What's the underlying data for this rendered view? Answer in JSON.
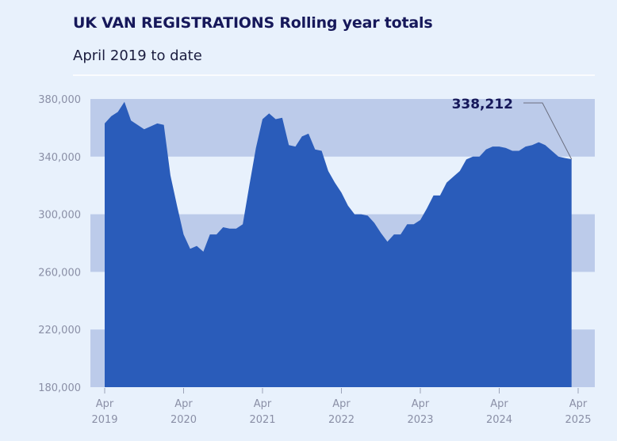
{
  "chart_data": {
    "type": "area",
    "title": "UK VAN REGISTRATIONS Rolling year totals",
    "subtitle": "April 2019 to date",
    "xlabel": "",
    "ylabel": "",
    "ylim": [
      180000,
      380000
    ],
    "y_ticks": [
      {
        "value": 380000,
        "label": "380,000"
      },
      {
        "value": 340000,
        "label": "340,000"
      },
      {
        "value": 300000,
        "label": "300,000"
      },
      {
        "value": 260000,
        "label": "260,000"
      },
      {
        "value": 220000,
        "label": "220,000"
      },
      {
        "value": 180000,
        "label": "180,000"
      }
    ],
    "x_ticks": [
      {
        "date": "2019-04",
        "line1": "Apr",
        "line2": "2019"
      },
      {
        "date": "2020-04",
        "line1": "Apr",
        "line2": "2020"
      },
      {
        "date": "2021-04",
        "line1": "Apr",
        "line2": "2021"
      },
      {
        "date": "2022-04",
        "line1": "Apr",
        "line2": "2022"
      },
      {
        "date": "2023-04",
        "line1": "Apr",
        "line2": "2023"
      },
      {
        "date": "2024-04",
        "line1": "Apr",
        "line2": "2024"
      },
      {
        "date": "2025-04",
        "line1": "Apr",
        "line2": "2025"
      }
    ],
    "grid": "alternating horizontal bands",
    "colors": {
      "area": "#2a5cba",
      "band": "#bccbea",
      "background": "#e8f1fc",
      "annotation": "#16185a"
    },
    "x": [
      "2019-04",
      "2019-05",
      "2019-06",
      "2019-07",
      "2019-08",
      "2019-09",
      "2019-10",
      "2019-11",
      "2019-12",
      "2020-01",
      "2020-02",
      "2020-03",
      "2020-04",
      "2020-05",
      "2020-06",
      "2020-07",
      "2020-08",
      "2020-09",
      "2020-10",
      "2020-11",
      "2020-12",
      "2021-01",
      "2021-02",
      "2021-03",
      "2021-04",
      "2021-05",
      "2021-06",
      "2021-07",
      "2021-08",
      "2021-09",
      "2021-10",
      "2021-11",
      "2021-12",
      "2022-01",
      "2022-02",
      "2022-03",
      "2022-04",
      "2022-05",
      "2022-06",
      "2022-07",
      "2022-08",
      "2022-09",
      "2022-10",
      "2022-11",
      "2022-12",
      "2023-01",
      "2023-02",
      "2023-03",
      "2023-04",
      "2023-05",
      "2023-06",
      "2023-07",
      "2023-08",
      "2023-09",
      "2023-10",
      "2023-11",
      "2023-12",
      "2024-01",
      "2024-02",
      "2024-03",
      "2024-04",
      "2024-05",
      "2024-06",
      "2024-07",
      "2024-08",
      "2024-09",
      "2024-10",
      "2024-11",
      "2024-12",
      "2025-01",
      "2025-02",
      "2025-03"
    ],
    "values": [
      363000,
      368000,
      371000,
      378000,
      365000,
      362000,
      359000,
      361000,
      363000,
      362000,
      327000,
      306000,
      286000,
      276000,
      278000,
      274000,
      286000,
      286000,
      291000,
      290000,
      290000,
      293000,
      320000,
      346000,
      366000,
      370000,
      366000,
      367000,
      348000,
      347000,
      354000,
      356000,
      345000,
      344000,
      330000,
      322000,
      315000,
      306000,
      300000,
      300000,
      299000,
      294000,
      287000,
      281000,
      286000,
      286000,
      293000,
      293000,
      296000,
      304000,
      313000,
      313000,
      322000,
      326000,
      330000,
      338000,
      340000,
      340000,
      345000,
      347000,
      347000,
      346000,
      344000,
      344000,
      347000,
      348000,
      350000,
      348000,
      344000,
      340000,
      339000,
      338212
    ],
    "annotation": {
      "label": "338,212",
      "value": 338212,
      "date": "2025-03"
    }
  }
}
